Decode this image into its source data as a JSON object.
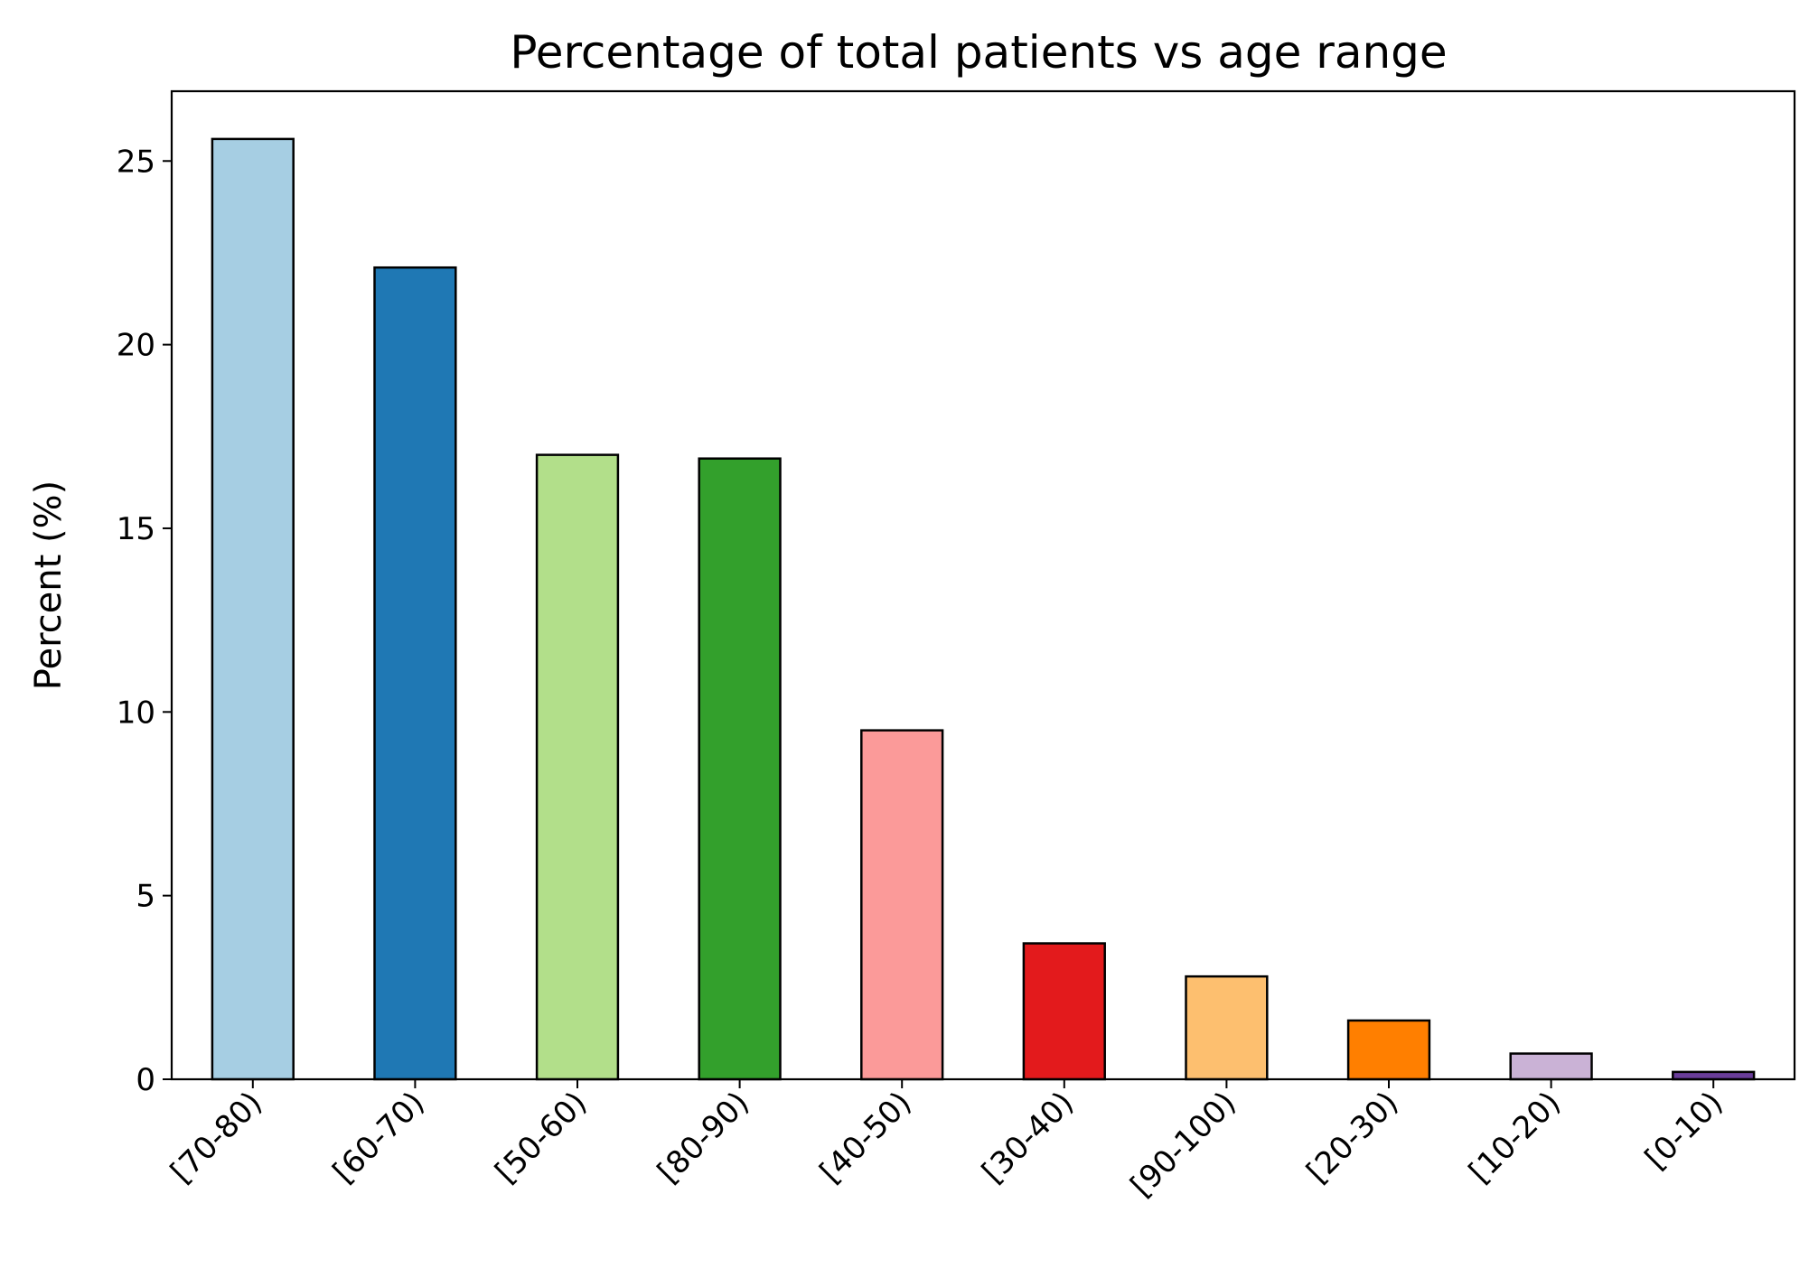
{
  "chart_data": {
    "type": "bar",
    "title": "Percentage of total patients vs age range",
    "xlabel": "",
    "ylabel": "Percent (%)",
    "ylim": [
      0,
      26.9
    ],
    "yticks": [
      0,
      5,
      10,
      15,
      20,
      25
    ],
    "grid": false,
    "legend": "none",
    "categories": [
      "[70-80)",
      "[60-70)",
      "[50-60)",
      "[80-90)",
      "[40-50)",
      "[30-40)",
      "[90-100)",
      "[20-30)",
      "[10-20)",
      "[0-10)"
    ],
    "values": [
      25.6,
      22.1,
      17.0,
      16.9,
      9.5,
      3.7,
      2.8,
      1.6,
      0.7,
      0.2
    ],
    "colors": [
      "#a6cee3",
      "#1f78b4",
      "#b2df8a",
      "#33a02c",
      "#fb9a99",
      "#e31a1c",
      "#fdbf6f",
      "#ff7f00",
      "#cab2d6",
      "#6a3d9a"
    ],
    "edge_color": "#000000"
  }
}
